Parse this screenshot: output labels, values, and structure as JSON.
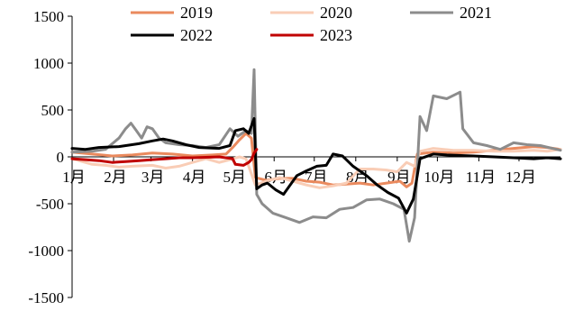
{
  "chart_data": {
    "type": "line",
    "title": "",
    "xlabel": "",
    "ylabel": "",
    "xlim": [
      0,
      365
    ],
    "ylim": [
      -1500,
      1500
    ],
    "yticks": [
      1500,
      1000,
      500,
      0,
      -500,
      -1000,
      -1500
    ],
    "xticks": [
      {
        "label": "1月",
        "day": 0
      },
      {
        "label": "2月",
        "day": 31
      },
      {
        "label": "3月",
        "day": 59
      },
      {
        "label": "4月",
        "day": 90
      },
      {
        "label": "5月",
        "day": 120
      },
      {
        "label": "6月",
        "day": 151
      },
      {
        "label": "7月",
        "day": 181
      },
      {
        "label": "8月",
        "day": 212
      },
      {
        "label": "9月",
        "day": 243
      },
      {
        "label": "10月",
        "day": 273
      },
      {
        "label": "11月",
        "day": 304
      },
      {
        "label": "12月",
        "day": 334
      }
    ],
    "grid": false,
    "legend": "top",
    "series": [
      {
        "name": "2019",
        "color": "#ea8a5e",
        "width": 3,
        "points": [
          [
            0,
            50
          ],
          [
            15,
            30
          ],
          [
            30,
            10
          ],
          [
            45,
            20
          ],
          [
            60,
            40
          ],
          [
            75,
            30
          ],
          [
            90,
            10
          ],
          [
            105,
            20
          ],
          [
            115,
            30
          ],
          [
            120,
            100
          ],
          [
            125,
            180
          ],
          [
            130,
            250
          ],
          [
            134,
            200
          ],
          [
            137,
            -220
          ],
          [
            145,
            -250
          ],
          [
            155,
            -230
          ],
          [
            165,
            -230
          ],
          [
            175,
            -260
          ],
          [
            185,
            -270
          ],
          [
            195,
            -300
          ],
          [
            205,
            -290
          ],
          [
            215,
            -280
          ],
          [
            225,
            -300
          ],
          [
            235,
            -280
          ],
          [
            245,
            -260
          ],
          [
            250,
            -320
          ],
          [
            254,
            -280
          ],
          [
            258,
            30
          ],
          [
            270,
            50
          ],
          [
            285,
            40
          ],
          [
            300,
            50
          ],
          [
            315,
            70
          ],
          [
            330,
            90
          ],
          [
            345,
            110
          ],
          [
            355,
            100
          ],
          [
            365,
            80
          ]
        ]
      },
      {
        "name": "2020",
        "color": "#f9cdb6",
        "width": 3,
        "points": [
          [
            0,
            -20
          ],
          [
            15,
            -80
          ],
          [
            25,
            -90
          ],
          [
            35,
            -110
          ],
          [
            45,
            -100
          ],
          [
            60,
            -90
          ],
          [
            70,
            -120
          ],
          [
            80,
            -100
          ],
          [
            90,
            -60
          ],
          [
            100,
            -20
          ],
          [
            110,
            -60
          ],
          [
            118,
            -30
          ],
          [
            125,
            0
          ],
          [
            130,
            -20
          ],
          [
            137,
            -300
          ],
          [
            145,
            -260
          ],
          [
            155,
            -220
          ],
          [
            165,
            -260
          ],
          [
            175,
            -300
          ],
          [
            185,
            -330
          ],
          [
            195,
            -310
          ],
          [
            205,
            -280
          ],
          [
            215,
            -130
          ],
          [
            225,
            -130
          ],
          [
            235,
            -140
          ],
          [
            243,
            -160
          ],
          [
            250,
            -60
          ],
          [
            256,
            -100
          ],
          [
            260,
            60
          ],
          [
            270,
            90
          ],
          [
            285,
            70
          ],
          [
            300,
            70
          ],
          [
            315,
            60
          ],
          [
            330,
            60
          ],
          [
            345,
            70
          ],
          [
            355,
            60
          ],
          [
            365,
            80
          ]
        ]
      },
      {
        "name": "2021",
        "color": "#8c8c8c",
        "width": 3,
        "points": [
          [
            0,
            50
          ],
          [
            15,
            60
          ],
          [
            25,
            80
          ],
          [
            35,
            200
          ],
          [
            40,
            300
          ],
          [
            44,
            360
          ],
          [
            48,
            280
          ],
          [
            52,
            200
          ],
          [
            56,
            320
          ],
          [
            60,
            300
          ],
          [
            65,
            200
          ],
          [
            70,
            150
          ],
          [
            80,
            130
          ],
          [
            90,
            120
          ],
          [
            100,
            100
          ],
          [
            110,
            130
          ],
          [
            118,
            300
          ],
          [
            124,
            220
          ],
          [
            130,
            280
          ],
          [
            134,
            250
          ],
          [
            136,
            930
          ],
          [
            138,
            -400
          ],
          [
            142,
            -500
          ],
          [
            150,
            -600
          ],
          [
            160,
            -650
          ],
          [
            170,
            -700
          ],
          [
            180,
            -640
          ],
          [
            190,
            -650
          ],
          [
            200,
            -560
          ],
          [
            210,
            -540
          ],
          [
            220,
            -460
          ],
          [
            230,
            -450
          ],
          [
            240,
            -500
          ],
          [
            248,
            -560
          ],
          [
            252,
            -900
          ],
          [
            256,
            -650
          ],
          [
            260,
            430
          ],
          [
            265,
            280
          ],
          [
            270,
            650
          ],
          [
            280,
            620
          ],
          [
            290,
            690
          ],
          [
            292,
            300
          ],
          [
            300,
            150
          ],
          [
            310,
            120
          ],
          [
            320,
            80
          ],
          [
            330,
            150
          ],
          [
            340,
            130
          ],
          [
            350,
            120
          ],
          [
            365,
            70
          ]
        ]
      },
      {
        "name": "2022",
        "color": "#000000",
        "width": 3,
        "points": [
          [
            0,
            90
          ],
          [
            10,
            80
          ],
          [
            20,
            100
          ],
          [
            35,
            110
          ],
          [
            50,
            140
          ],
          [
            60,
            170
          ],
          [
            68,
            190
          ],
          [
            75,
            170
          ],
          [
            85,
            130
          ],
          [
            95,
            100
          ],
          [
            110,
            90
          ],
          [
            118,
            120
          ],
          [
            122,
            280
          ],
          [
            128,
            300
          ],
          [
            132,
            250
          ],
          [
            136,
            410
          ],
          [
            138,
            -340
          ],
          [
            142,
            -300
          ],
          [
            146,
            -280
          ],
          [
            152,
            -350
          ],
          [
            158,
            -400
          ],
          [
            163,
            -300
          ],
          [
            168,
            -200
          ],
          [
            175,
            -150
          ],
          [
            183,
            -100
          ],
          [
            190,
            -90
          ],
          [
            195,
            30
          ],
          [
            202,
            10
          ],
          [
            210,
            -100
          ],
          [
            220,
            -200
          ],
          [
            228,
            -300
          ],
          [
            236,
            -380
          ],
          [
            244,
            -440
          ],
          [
            250,
            -600
          ],
          [
            255,
            -450
          ],
          [
            258,
            -200
          ],
          [
            260,
            -20
          ],
          [
            270,
            30
          ],
          [
            280,
            20
          ],
          [
            300,
            10
          ],
          [
            315,
            0
          ],
          [
            330,
            -10
          ],
          [
            345,
            -20
          ],
          [
            355,
            -10
          ],
          [
            365,
            -20
          ]
        ]
      },
      {
        "name": "2023",
        "color": "#c00000",
        "width": 3,
        "points": [
          [
            0,
            -20
          ],
          [
            10,
            -30
          ],
          [
            20,
            -40
          ],
          [
            30,
            -60
          ],
          [
            40,
            -50
          ],
          [
            50,
            -40
          ],
          [
            60,
            -30
          ],
          [
            70,
            -20
          ],
          [
            80,
            -10
          ],
          [
            90,
            -10
          ],
          [
            100,
            -5
          ],
          [
            110,
            0
          ],
          [
            120,
            -20
          ],
          [
            122,
            -80
          ],
          [
            128,
            -90
          ],
          [
            132,
            -60
          ],
          [
            134,
            -30
          ],
          [
            136,
            40
          ],
          [
            138,
            80
          ]
        ]
      }
    ]
  }
}
